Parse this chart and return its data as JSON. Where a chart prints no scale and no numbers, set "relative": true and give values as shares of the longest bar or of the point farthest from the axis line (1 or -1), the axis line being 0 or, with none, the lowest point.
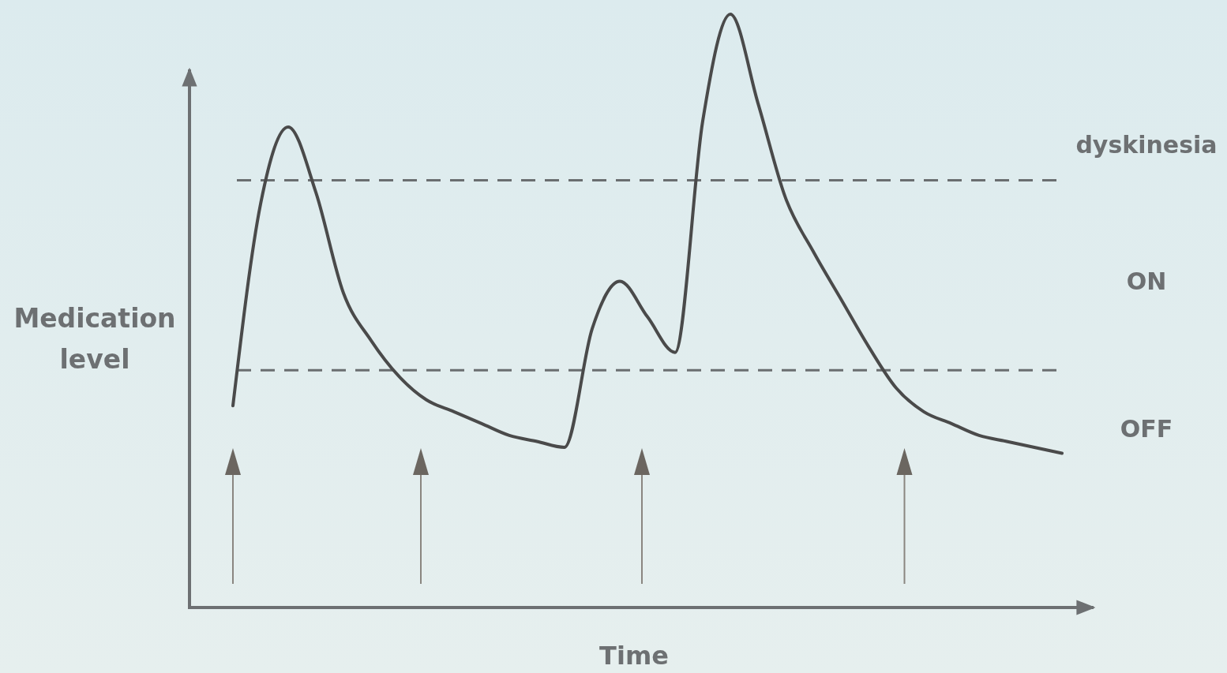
{
  "chart_data": {
    "type": "line",
    "relative": true,
    "xlabel": "Time",
    "ylabel": "Medication level",
    "categories": [
      null,
      null,
      null,
      null,
      null,
      null,
      null,
      null,
      null,
      null,
      null,
      null,
      null,
      null,
      null,
      null,
      null,
      null,
      null,
      null,
      null,
      null,
      null,
      null,
      null,
      null,
      null,
      null,
      null,
      null,
      null
    ],
    "values": [
      0.34,
      0.68,
      0.81,
      0.7,
      0.53,
      0.45,
      0.39,
      0.35,
      0.33,
      0.31,
      0.29,
      0.28,
      0.27,
      0.47,
      0.55,
      0.49,
      0.43,
      0.82,
      1,
      0.85,
      0.69,
      0.6,
      0.52,
      0.44,
      0.37,
      0.33,
      0.31,
      0.29,
      0.28,
      0.27,
      0.26
    ],
    "color": "#4a4a4a",
    "marker": "none",
    "line_style": "solid",
    "ref_lines": [
      {
        "axis": "y",
        "value": 0.72,
        "color": "#6a6e70",
        "line_style": "dashed"
      },
      {
        "axis": "y",
        "value": 0.4,
        "color": "#6a6e70",
        "line_style": "dashed"
      }
    ],
    "annotations": [
      "dyskinesia",
      "ON",
      "OFF"
    ]
  }
}
